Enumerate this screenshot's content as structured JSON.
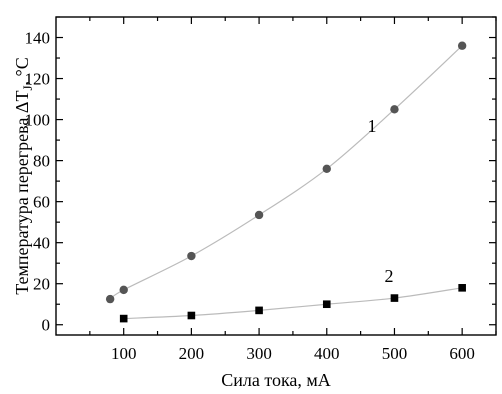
{
  "chart_data": {
    "type": "scatter",
    "xlabel": "Сила тока, мА",
    "ylabel": "Температура перегрева ΔT",
    "ylabel_sub": "J",
    "ylabel_unit": ", °С",
    "xlim": [
      0,
      650
    ],
    "ylim": [
      -5,
      150
    ],
    "xticks": [
      100,
      200,
      300,
      400,
      500,
      600
    ],
    "yticks": [
      0,
      20,
      40,
      60,
      80,
      100,
      120,
      140
    ],
    "grid": false,
    "series": [
      {
        "label": "1",
        "marker": "circle",
        "x": [
          80,
          100,
          200,
          300,
          400,
          500,
          600
        ],
        "y": [
          12.5,
          17,
          33.5,
          53.5,
          76,
          105,
          136
        ]
      },
      {
        "label": "2",
        "marker": "square",
        "x": [
          100,
          200,
          300,
          400,
          500,
          600
        ],
        "y": [
          3,
          4.5,
          7,
          10,
          13,
          18
        ]
      }
    ],
    "colors": {
      "marker_1": "#555555",
      "marker_2": "#000000",
      "line": "#bbbbbb",
      "axis": "#000000"
    }
  }
}
